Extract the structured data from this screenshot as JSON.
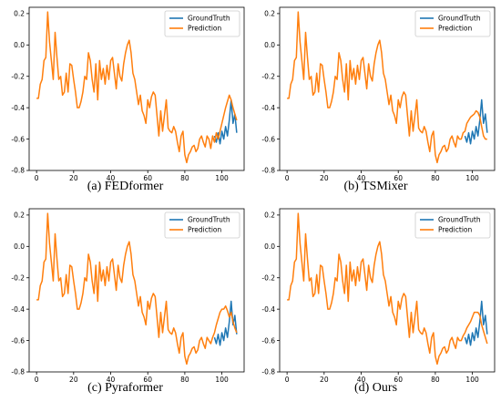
{
  "legend": {
    "truth": "GroundTruth",
    "pred": "Prediction"
  },
  "colors": {
    "truth": "#1f77b4",
    "pred": "#ff7f0e"
  },
  "chart_data": [
    {
      "type": "line",
      "caption": "(a) FEDformer",
      "xlim": [
        -4,
        112
      ],
      "ylim": [
        -0.8,
        0.24
      ],
      "xticks": [
        0,
        20,
        40,
        60,
        80,
        100
      ],
      "yticks": [
        -0.8,
        -0.6,
        -0.4,
        -0.2,
        0.0,
        0.2
      ],
      "legend_position": "top-right",
      "series": [
        {
          "name": "GroundTruth",
          "x": [
            96,
            97,
            98,
            99,
            100,
            101,
            102,
            103,
            104,
            105,
            106,
            107,
            108
          ],
          "y": [
            -0.58,
            -0.62,
            -0.56,
            -0.63,
            -0.55,
            -0.6,
            -0.52,
            -0.58,
            -0.48,
            -0.35,
            -0.5,
            -0.44,
            -0.56
          ]
        },
        {
          "name": "Prediction",
          "x": [
            0,
            1,
            2,
            3,
            4,
            5,
            6,
            7,
            8,
            9,
            10,
            11,
            12,
            13,
            14,
            15,
            16,
            17,
            18,
            19,
            20,
            21,
            22,
            23,
            24,
            25,
            26,
            27,
            28,
            29,
            30,
            31,
            32,
            33,
            34,
            35,
            36,
            37,
            38,
            39,
            40,
            41,
            42,
            43,
            44,
            45,
            46,
            47,
            48,
            49,
            50,
            51,
            52,
            53,
            54,
            55,
            56,
            57,
            58,
            59,
            60,
            61,
            62,
            63,
            64,
            65,
            66,
            67,
            68,
            69,
            70,
            71,
            72,
            73,
            74,
            75,
            76,
            77,
            78,
            79,
            80,
            81,
            82,
            83,
            84,
            85,
            86,
            87,
            88,
            89,
            90,
            91,
            92,
            93,
            94,
            95,
            96,
            97,
            98,
            99,
            100,
            101,
            102,
            103,
            104,
            105,
            106,
            107,
            108
          ],
          "y": [
            -0.34,
            -0.34,
            -0.25,
            -0.22,
            -0.1,
            -0.08,
            0.21,
            0.02,
            -0.1,
            -0.22,
            0.08,
            -0.08,
            -0.22,
            -0.2,
            -0.32,
            -0.3,
            -0.18,
            -0.3,
            -0.12,
            -0.13,
            -0.22,
            -0.3,
            -0.4,
            -0.4,
            -0.36,
            -0.3,
            -0.2,
            -0.22,
            -0.05,
            -0.1,
            -0.22,
            -0.3,
            -0.12,
            -0.35,
            -0.1,
            -0.22,
            -0.15,
            -0.25,
            -0.13,
            -0.22,
            -0.1,
            -0.08,
            -0.18,
            -0.28,
            -0.12,
            -0.2,
            -0.23,
            -0.12,
            -0.05,
            0.0,
            0.03,
            -0.05,
            -0.18,
            -0.22,
            -0.3,
            -0.38,
            -0.32,
            -0.42,
            -0.45,
            -0.5,
            -0.35,
            -0.4,
            -0.33,
            -0.3,
            -0.32,
            -0.45,
            -0.58,
            -0.42,
            -0.55,
            -0.45,
            -0.35,
            -0.53,
            -0.55,
            -0.56,
            -0.52,
            -0.55,
            -0.62,
            -0.68,
            -0.58,
            -0.55,
            -0.7,
            -0.75,
            -0.7,
            -0.68,
            -0.65,
            -0.64,
            -0.68,
            -0.66,
            -0.6,
            -0.58,
            -0.62,
            -0.65,
            -0.58,
            -0.6,
            -0.66,
            -0.58,
            -0.62,
            -0.56,
            -0.6,
            -0.55,
            -0.5,
            -0.45,
            -0.4,
            -0.36,
            -0.32,
            -0.35,
            -0.4,
            -0.44,
            -0.48
          ]
        }
      ]
    },
    {
      "type": "line",
      "caption": "(b) TSMixer",
      "xlim": [
        -4,
        112
      ],
      "ylim": [
        -0.8,
        0.24
      ],
      "xticks": [
        0,
        20,
        40,
        60,
        80,
        100
      ],
      "yticks": [
        -0.8,
        -0.6,
        -0.4,
        -0.2,
        0.0,
        0.2
      ],
      "legend_position": "top-right",
      "series": [
        {
          "name": "GroundTruth",
          "x": [
            96,
            97,
            98,
            99,
            100,
            101,
            102,
            103,
            104,
            105,
            106,
            107,
            108
          ],
          "y": [
            -0.58,
            -0.62,
            -0.56,
            -0.63,
            -0.55,
            -0.6,
            -0.52,
            -0.58,
            -0.48,
            -0.35,
            -0.5,
            -0.44,
            -0.56
          ]
        },
        {
          "name": "Prediction",
          "x": [
            0,
            1,
            2,
            3,
            4,
            5,
            6,
            7,
            8,
            9,
            10,
            11,
            12,
            13,
            14,
            15,
            16,
            17,
            18,
            19,
            20,
            21,
            22,
            23,
            24,
            25,
            26,
            27,
            28,
            29,
            30,
            31,
            32,
            33,
            34,
            35,
            36,
            37,
            38,
            39,
            40,
            41,
            42,
            43,
            44,
            45,
            46,
            47,
            48,
            49,
            50,
            51,
            52,
            53,
            54,
            55,
            56,
            57,
            58,
            59,
            60,
            61,
            62,
            63,
            64,
            65,
            66,
            67,
            68,
            69,
            70,
            71,
            72,
            73,
            74,
            75,
            76,
            77,
            78,
            79,
            80,
            81,
            82,
            83,
            84,
            85,
            86,
            87,
            88,
            89,
            90,
            91,
            92,
            93,
            94,
            95,
            96,
            97,
            98,
            99,
            100,
            101,
            102,
            103,
            104,
            105,
            106,
            107,
            108
          ],
          "y": [
            -0.34,
            -0.34,
            -0.25,
            -0.22,
            -0.1,
            -0.08,
            0.21,
            0.02,
            -0.1,
            -0.22,
            0.08,
            -0.08,
            -0.22,
            -0.2,
            -0.32,
            -0.3,
            -0.18,
            -0.3,
            -0.12,
            -0.13,
            -0.22,
            -0.3,
            -0.4,
            -0.4,
            -0.36,
            -0.3,
            -0.2,
            -0.22,
            -0.05,
            -0.1,
            -0.22,
            -0.3,
            -0.12,
            -0.35,
            -0.1,
            -0.22,
            -0.15,
            -0.25,
            -0.13,
            -0.22,
            -0.1,
            -0.08,
            -0.18,
            -0.28,
            -0.12,
            -0.2,
            -0.23,
            -0.12,
            -0.05,
            0.0,
            0.03,
            -0.05,
            -0.18,
            -0.22,
            -0.3,
            -0.38,
            -0.32,
            -0.42,
            -0.45,
            -0.5,
            -0.35,
            -0.4,
            -0.33,
            -0.3,
            -0.32,
            -0.45,
            -0.58,
            -0.42,
            -0.55,
            -0.45,
            -0.35,
            -0.53,
            -0.55,
            -0.56,
            -0.52,
            -0.55,
            -0.62,
            -0.68,
            -0.58,
            -0.55,
            -0.7,
            -0.75,
            -0.7,
            -0.68,
            -0.65,
            -0.64,
            -0.68,
            -0.66,
            -0.6,
            -0.58,
            -0.62,
            -0.65,
            -0.58,
            -0.6,
            -0.6,
            -0.56,
            -0.55,
            -0.5,
            -0.48,
            -0.46,
            -0.45,
            -0.44,
            -0.42,
            -0.43,
            -0.46,
            -0.52,
            -0.58,
            -0.6,
            -0.6
          ]
        }
      ]
    },
    {
      "type": "line",
      "caption": "(c) Pyraformer",
      "xlim": [
        -4,
        112
      ],
      "ylim": [
        -0.8,
        0.24
      ],
      "xticks": [
        0,
        20,
        40,
        60,
        80,
        100
      ],
      "yticks": [
        -0.8,
        -0.6,
        -0.4,
        -0.2,
        0.0,
        0.2
      ],
      "legend_position": "top-right",
      "series": [
        {
          "name": "GroundTruth",
          "x": [
            96,
            97,
            98,
            99,
            100,
            101,
            102,
            103,
            104,
            105,
            106,
            107,
            108
          ],
          "y": [
            -0.58,
            -0.62,
            -0.56,
            -0.63,
            -0.55,
            -0.6,
            -0.52,
            -0.58,
            -0.48,
            -0.35,
            -0.5,
            -0.44,
            -0.56
          ]
        },
        {
          "name": "Prediction",
          "x": [
            0,
            1,
            2,
            3,
            4,
            5,
            6,
            7,
            8,
            9,
            10,
            11,
            12,
            13,
            14,
            15,
            16,
            17,
            18,
            19,
            20,
            21,
            22,
            23,
            24,
            25,
            26,
            27,
            28,
            29,
            30,
            31,
            32,
            33,
            34,
            35,
            36,
            37,
            38,
            39,
            40,
            41,
            42,
            43,
            44,
            45,
            46,
            47,
            48,
            49,
            50,
            51,
            52,
            53,
            54,
            55,
            56,
            57,
            58,
            59,
            60,
            61,
            62,
            63,
            64,
            65,
            66,
            67,
            68,
            69,
            70,
            71,
            72,
            73,
            74,
            75,
            76,
            77,
            78,
            79,
            80,
            81,
            82,
            83,
            84,
            85,
            86,
            87,
            88,
            89,
            90,
            91,
            92,
            93,
            94,
            95,
            96,
            97,
            98,
            99,
            100,
            101,
            102,
            103,
            104,
            105,
            106,
            107,
            108
          ],
          "y": [
            -0.34,
            -0.34,
            -0.25,
            -0.22,
            -0.1,
            -0.08,
            0.21,
            0.02,
            -0.1,
            -0.22,
            0.08,
            -0.08,
            -0.22,
            -0.2,
            -0.32,
            -0.3,
            -0.18,
            -0.3,
            -0.12,
            -0.13,
            -0.22,
            -0.3,
            -0.4,
            -0.4,
            -0.36,
            -0.3,
            -0.2,
            -0.22,
            -0.05,
            -0.1,
            -0.22,
            -0.3,
            -0.12,
            -0.35,
            -0.1,
            -0.22,
            -0.15,
            -0.25,
            -0.13,
            -0.22,
            -0.1,
            -0.08,
            -0.18,
            -0.28,
            -0.12,
            -0.2,
            -0.23,
            -0.12,
            -0.05,
            0.0,
            0.03,
            -0.05,
            -0.18,
            -0.22,
            -0.3,
            -0.38,
            -0.32,
            -0.42,
            -0.45,
            -0.5,
            -0.35,
            -0.4,
            -0.33,
            -0.3,
            -0.32,
            -0.45,
            -0.58,
            -0.42,
            -0.55,
            -0.45,
            -0.35,
            -0.53,
            -0.55,
            -0.56,
            -0.52,
            -0.55,
            -0.62,
            -0.68,
            -0.58,
            -0.55,
            -0.7,
            -0.75,
            -0.7,
            -0.68,
            -0.65,
            -0.64,
            -0.68,
            -0.66,
            -0.6,
            -0.58,
            -0.62,
            -0.65,
            -0.58,
            -0.6,
            -0.62,
            -0.58,
            -0.55,
            -0.5,
            -0.46,
            -0.42,
            -0.4,
            -0.4,
            -0.38,
            -0.41,
            -0.45,
            -0.42,
            -0.48,
            -0.52,
            -0.55
          ]
        }
      ]
    },
    {
      "type": "line",
      "caption": "(d) Ours",
      "xlim": [
        -4,
        112
      ],
      "ylim": [
        -0.8,
        0.24
      ],
      "xticks": [
        0,
        20,
        40,
        60,
        80,
        100
      ],
      "yticks": [
        -0.8,
        -0.6,
        -0.4,
        -0.2,
        0.0,
        0.2
      ],
      "legend_position": "top-right",
      "series": [
        {
          "name": "GroundTruth",
          "x": [
            96,
            97,
            98,
            99,
            100,
            101,
            102,
            103,
            104,
            105,
            106,
            107,
            108
          ],
          "y": [
            -0.58,
            -0.62,
            -0.56,
            -0.63,
            -0.55,
            -0.6,
            -0.52,
            -0.58,
            -0.48,
            -0.35,
            -0.5,
            -0.44,
            -0.56
          ]
        },
        {
          "name": "Prediction",
          "x": [
            0,
            1,
            2,
            3,
            4,
            5,
            6,
            7,
            8,
            9,
            10,
            11,
            12,
            13,
            14,
            15,
            16,
            17,
            18,
            19,
            20,
            21,
            22,
            23,
            24,
            25,
            26,
            27,
            28,
            29,
            30,
            31,
            32,
            33,
            34,
            35,
            36,
            37,
            38,
            39,
            40,
            41,
            42,
            43,
            44,
            45,
            46,
            47,
            48,
            49,
            50,
            51,
            52,
            53,
            54,
            55,
            56,
            57,
            58,
            59,
            60,
            61,
            62,
            63,
            64,
            65,
            66,
            67,
            68,
            69,
            70,
            71,
            72,
            73,
            74,
            75,
            76,
            77,
            78,
            79,
            80,
            81,
            82,
            83,
            84,
            85,
            86,
            87,
            88,
            89,
            90,
            91,
            92,
            93,
            94,
            95,
            96,
            97,
            98,
            99,
            100,
            101,
            102,
            103,
            104,
            105,
            106,
            107,
            108
          ],
          "y": [
            -0.34,
            -0.34,
            -0.25,
            -0.22,
            -0.1,
            -0.08,
            0.21,
            0.02,
            -0.1,
            -0.22,
            0.08,
            -0.08,
            -0.22,
            -0.2,
            -0.32,
            -0.3,
            -0.18,
            -0.3,
            -0.12,
            -0.13,
            -0.22,
            -0.3,
            -0.4,
            -0.4,
            -0.36,
            -0.3,
            -0.2,
            -0.22,
            -0.05,
            -0.1,
            -0.22,
            -0.3,
            -0.12,
            -0.35,
            -0.1,
            -0.22,
            -0.15,
            -0.25,
            -0.13,
            -0.22,
            -0.1,
            -0.08,
            -0.18,
            -0.28,
            -0.12,
            -0.2,
            -0.23,
            -0.12,
            -0.05,
            0.0,
            0.03,
            -0.05,
            -0.18,
            -0.22,
            -0.3,
            -0.38,
            -0.32,
            -0.42,
            -0.45,
            -0.5,
            -0.35,
            -0.4,
            -0.33,
            -0.3,
            -0.32,
            -0.45,
            -0.58,
            -0.42,
            -0.55,
            -0.45,
            -0.35,
            -0.53,
            -0.55,
            -0.56,
            -0.52,
            -0.55,
            -0.62,
            -0.68,
            -0.58,
            -0.55,
            -0.7,
            -0.75,
            -0.7,
            -0.68,
            -0.65,
            -0.64,
            -0.68,
            -0.66,
            -0.6,
            -0.58,
            -0.62,
            -0.65,
            -0.58,
            -0.6,
            -0.6,
            -0.57,
            -0.55,
            -0.52,
            -0.5,
            -0.48,
            -0.45,
            -0.42,
            -0.42,
            -0.42,
            -0.44,
            -0.5,
            -0.54,
            -0.58,
            -0.62
          ]
        }
      ]
    }
  ]
}
